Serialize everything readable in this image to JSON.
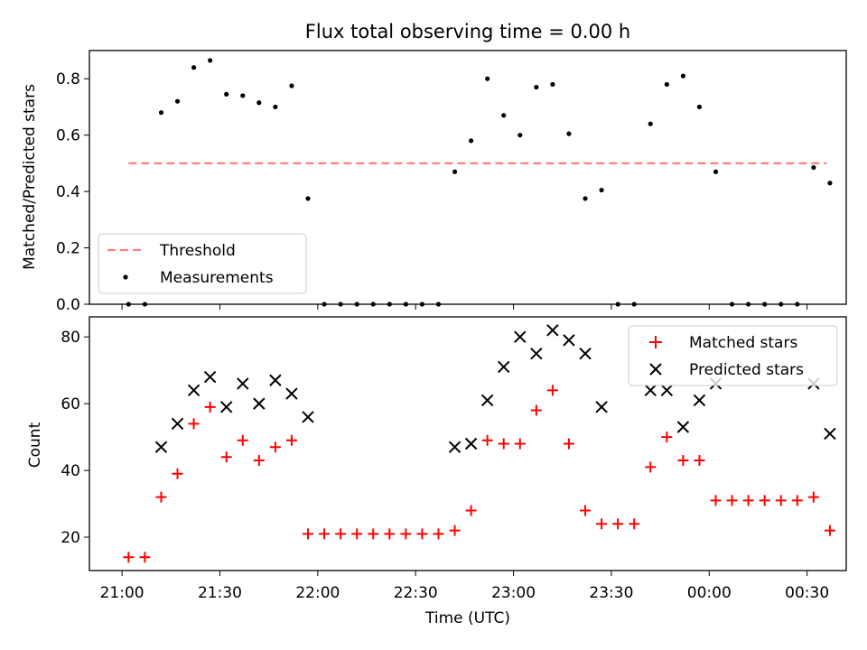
{
  "chart_data": [
    {
      "type": "scatter",
      "title": "Flux total observing time = 0.00 h",
      "xlabel": "",
      "ylabel": "Matched/Predicted stars",
      "ylim": [
        0,
        0.9
      ],
      "yticks": [
        "0.0",
        "0.2",
        "0.4",
        "0.6",
        "0.8"
      ],
      "xlim": [
        "20:50",
        "00:42"
      ],
      "grid": false,
      "legend_position": "lower-left",
      "series": [
        {
          "name": "Threshold",
          "style": "dashed-line",
          "color": "#ff7f7f",
          "x": [
            "21:02",
            "00:36"
          ],
          "y": [
            0.5,
            0.5
          ]
        },
        {
          "name": "Measurements",
          "style": "dot",
          "color": "#000000",
          "x": [
            "21:02",
            "21:07",
            "21:12",
            "21:17",
            "21:22",
            "21:27",
            "21:32",
            "21:37",
            "21:42",
            "21:47",
            "21:52",
            "21:57",
            "22:02",
            "22:07",
            "22:12",
            "22:17",
            "22:22",
            "22:27",
            "22:32",
            "22:37",
            "22:42",
            "22:47",
            "22:52",
            "22:57",
            "23:02",
            "23:07",
            "23:12",
            "23:17",
            "23:22",
            "23:27",
            "23:32",
            "23:37",
            "23:42",
            "23:47",
            "23:52",
            "23:57",
            "00:02",
            "00:07",
            "00:12",
            "00:17",
            "00:22",
            "00:27",
            "00:32",
            "00:37"
          ],
          "y": [
            0,
            0,
            0.68,
            0.72,
            0.84,
            0.865,
            0.745,
            0.74,
            0.715,
            0.7,
            0.775,
            0.375,
            0,
            0,
            0,
            0,
            0,
            0,
            0,
            0,
            0.47,
            0.58,
            0.8,
            0.67,
            0.6,
            0.77,
            0.78,
            0.605,
            0.375,
            0.405,
            0,
            0,
            0.64,
            0.78,
            0.81,
            0.7,
            0.47,
            0,
            0,
            0,
            0,
            0,
            0.485,
            0.43
          ]
        }
      ]
    },
    {
      "type": "scatter",
      "title": "",
      "xlabel": "Time (UTC)",
      "ylabel": "Count",
      "ylim": [
        10,
        86
      ],
      "yticks": [
        "20",
        "40",
        "60",
        "80"
      ],
      "xlim": [
        "20:50",
        "00:42"
      ],
      "xticks": [
        "21:00",
        "21:30",
        "22:00",
        "22:30",
        "23:00",
        "23:30",
        "00:00",
        "00:30"
      ],
      "grid": false,
      "legend_position": "upper-right",
      "series": [
        {
          "name": "Matched stars",
          "marker": "plus",
          "color": "#ff0000",
          "x": [
            "21:02",
            "21:07",
            "21:12",
            "21:17",
            "21:22",
            "21:27",
            "21:32",
            "21:37",
            "21:42",
            "21:47",
            "21:52",
            "21:57",
            "22:02",
            "22:07",
            "22:12",
            "22:17",
            "22:22",
            "22:27",
            "22:32",
            "22:37",
            "22:42",
            "22:47",
            "22:52",
            "22:57",
            "23:02",
            "23:07",
            "23:12",
            "23:17",
            "23:22",
            "23:27",
            "23:32",
            "23:37",
            "23:42",
            "23:47",
            "23:52",
            "23:57",
            "00:02",
            "00:07",
            "00:12",
            "00:17",
            "00:22",
            "00:27",
            "00:32",
            "00:37"
          ],
          "y": [
            14,
            14,
            32,
            39,
            54,
            59,
            44,
            49,
            43,
            47,
            49,
            21,
            21,
            21,
            21,
            21,
            21,
            21,
            21,
            21,
            22,
            28,
            49,
            48,
            48,
            58,
            64,
            48,
            28,
            24,
            24,
            24,
            41,
            50,
            43,
            43,
            31,
            31,
            31,
            31,
            31,
            31,
            32,
            22
          ]
        },
        {
          "name": "Predicted stars",
          "marker": "x",
          "color": "#000000",
          "x": [
            "21:12",
            "21:17",
            "21:22",
            "21:27",
            "21:32",
            "21:37",
            "21:42",
            "21:47",
            "21:52",
            "21:57",
            "22:42",
            "22:47",
            "22:52",
            "22:57",
            "23:02",
            "23:07",
            "23:12",
            "23:17",
            "23:22",
            "23:27",
            "23:42",
            "23:47",
            "23:52",
            "23:57",
            "00:02",
            "00:32",
            "00:37"
          ],
          "y": [
            47,
            54,
            64,
            68,
            59,
            66,
            60,
            67,
            63,
            56,
            47,
            48,
            61,
            71,
            80,
            75,
            82,
            79,
            75,
            59,
            64,
            64,
            53,
            61,
            66,
            66,
            51
          ]
        }
      ]
    }
  ]
}
